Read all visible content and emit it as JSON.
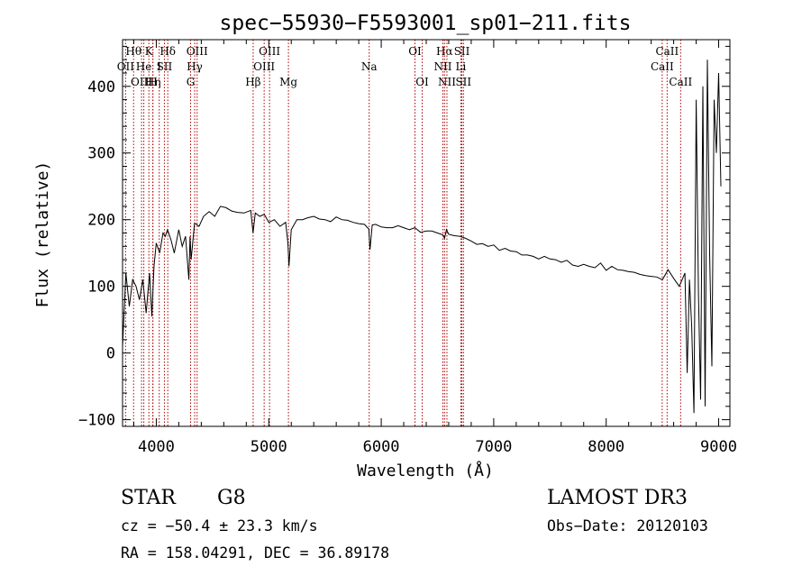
{
  "chart_data": {
    "type": "line",
    "title": "spec−55930−F5593001_sp01−211.fits",
    "xlabel": "Wavelength (Å)",
    "ylabel": "Flux (relative)",
    "xlim": [
      3700,
      9100
    ],
    "ylim": [
      -110,
      470
    ],
    "xticks": [
      4000,
      5000,
      6000,
      7000,
      8000,
      9000
    ],
    "xtick_labels": [
      "4000",
      "5000",
      "6000",
      "7000",
      "8000",
      "9000"
    ],
    "yticks": [
      -100,
      0,
      100,
      200,
      300,
      400
    ],
    "ytick_labels": [
      "−100",
      "0",
      "100",
      "200",
      "300",
      "400"
    ],
    "grid": false,
    "series": [
      {
        "x": [
          3700,
          3730,
          3760,
          3790,
          3820,
          3850,
          3880,
          3910,
          3940,
          3960,
          3980,
          4000,
          4030,
          4060,
          4080,
          4100,
          4130,
          4160,
          4200,
          4230,
          4260,
          4290,
          4300,
          4310,
          4340,
          4380,
          4420,
          4470,
          4520,
          4570,
          4620,
          4670,
          4720,
          4780,
          4840,
          4860,
          4880,
          4920,
          4960,
          5000,
          5050,
          5100,
          5150,
          5170,
          5180,
          5200,
          5250,
          5300,
          5350,
          5400,
          5450,
          5500,
          5550,
          5600,
          5650,
          5700,
          5750,
          5800,
          5850,
          5890,
          5900,
          5920,
          5950,
          6000,
          6050,
          6100,
          6150,
          6200,
          6250,
          6300,
          6350,
          6400,
          6450,
          6500,
          6550,
          6563,
          6580,
          6600,
          6650,
          6700,
          6750,
          6800,
          6850,
          6900,
          6950,
          7000,
          7050,
          7100,
          7150,
          7200,
          7250,
          7300,
          7350,
          7400,
          7450,
          7500,
          7550,
          7600,
          7650,
          7700,
          7750,
          7800,
          7850,
          7900,
          7950,
          8000,
          8050,
          8100,
          8150,
          8200,
          8250,
          8300,
          8350,
          8400,
          8450,
          8500,
          8550,
          8600,
          8650,
          8700,
          8720,
          8740,
          8760,
          8780,
          8800,
          8820,
          8840,
          8860,
          8880,
          8900,
          8920,
          8940,
          8960,
          8980,
          9000,
          9020
        ],
        "y": [
          10,
          120,
          70,
          110,
          100,
          80,
          110,
          60,
          120,
          55,
          130,
          165,
          150,
          180,
          175,
          185,
          170,
          150,
          185,
          160,
          175,
          110,
          175,
          140,
          195,
          190,
          205,
          212,
          205,
          220,
          218,
          213,
          211,
          210,
          214,
          180,
          210,
          205,
          208,
          196,
          200,
          190,
          196,
          165,
          130,
          185,
          200,
          200,
          203,
          205,
          201,
          200,
          197,
          204,
          200,
          199,
          196,
          194,
          193,
          186,
          155,
          192,
          193,
          189,
          188,
          188,
          191,
          188,
          185,
          188,
          181,
          183,
          183,
          180,
          177,
          172,
          185,
          178,
          176,
          175,
          172,
          168,
          163,
          164,
          160,
          162,
          154,
          157,
          153,
          152,
          147,
          147,
          145,
          141,
          145,
          141,
          140,
          136,
          139,
          132,
          130,
          133,
          130,
          128,
          135,
          124,
          130,
          125,
          124,
          122,
          121,
          118,
          116,
          115,
          114,
          110,
          125,
          112,
          100,
          120,
          -30,
          110,
          40,
          -90,
          380,
          90,
          -70,
          400,
          -80,
          440,
          150,
          -20,
          380,
          300,
          420,
          250
        ]
      }
    ],
    "spectral_lines": [
      {
        "label": "Hθ",
        "x": 3798,
        "row": 1
      },
      {
        "label": "OII",
        "x": 3727,
        "row": 2
      },
      {
        "label": "OIII",
        "x": 3869,
        "row": 3
      },
      {
        "label": "He",
        "x": 3889,
        "row": 2
      },
      {
        "label": "K",
        "x": 3934,
        "row": 1
      },
      {
        "label": "Hη",
        "x": 3970,
        "row": 3
      },
      {
        "label": "I",
        "x": 4026,
        "row": 2
      },
      {
        "label": "H",
        "x": 3969,
        "row": 3
      },
      {
        "label": "Hδ",
        "x": 4102,
        "row": 1
      },
      {
        "label": "SII",
        "x": 4072,
        "row": 2
      },
      {
        "label": "OIII",
        "x": 4363,
        "row": 1
      },
      {
        "label": "Hγ",
        "x": 4341,
        "row": 2
      },
      {
        "label": "G",
        "x": 4305,
        "row": 3
      },
      {
        "label": "Hβ",
        "x": 4861,
        "row": 3
      },
      {
        "label": "OIII",
        "x": 5007,
        "row": 1
      },
      {
        "label": "OIII",
        "x": 4959,
        "row": 2
      },
      {
        "label": "Mg",
        "x": 5175,
        "row": 3
      },
      {
        "label": "Na",
        "x": 5893,
        "row": 2
      },
      {
        "label": "OI",
        "x": 6300,
        "row": 1
      },
      {
        "label": "OI",
        "x": 6364,
        "row": 3
      },
      {
        "label": "Hα",
        "x": 6563,
        "row": 1
      },
      {
        "label": "NII",
        "x": 6548,
        "row": 2
      },
      {
        "label": "NII",
        "x": 6584,
        "row": 3
      },
      {
        "label": "SII",
        "x": 6717,
        "row": 1
      },
      {
        "label": "Li",
        "x": 6708,
        "row": 2
      },
      {
        "label": "SII",
        "x": 6731,
        "row": 3
      },
      {
        "label": "CaII",
        "x": 8542,
        "row": 1
      },
      {
        "label": "CaII",
        "x": 8498,
        "row": 2
      },
      {
        "label": "CaII",
        "x": 8662,
        "row": 3
      }
    ],
    "line_color": "#aa0000"
  },
  "info": {
    "object_class": "STAR",
    "subclass": "G8",
    "survey": "LAMOST DR3",
    "cz": "cz = −50.4 ± 23.3 km/s",
    "obs_date": "Obs−Date: 20120103",
    "coords": "RA = 158.04291, DEC =  36.89178"
  }
}
